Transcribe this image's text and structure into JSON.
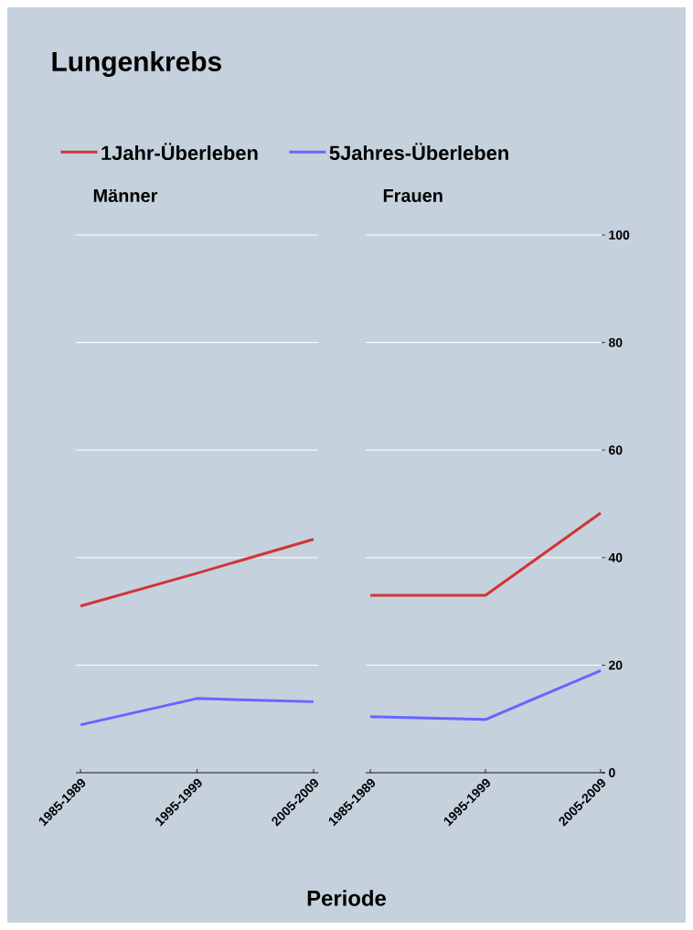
{
  "chart_data": [
    {
      "type": "line",
      "title": "Lungenkrebs",
      "subtitle": "Männer",
      "categories": [
        "1985-1989",
        "1995-1999",
        "2005-2009"
      ],
      "series": [
        {
          "name": "1Jahr-Überleben",
          "color": "#d03535",
          "values": [
            31.0,
            37.1,
            43.4
          ]
        },
        {
          "name": "5Jahres-Überleben",
          "color": "#6666ff",
          "values": [
            8.9,
            13.8,
            13.2
          ]
        }
      ],
      "ylim": [
        0,
        100
      ],
      "yticks": [
        0,
        20,
        40,
        60,
        80,
        100
      ],
      "grid": "y",
      "legend": "top",
      "tick_labels": "x"
    },
    {
      "type": "line",
      "subtitle": "Frauen",
      "xlabel": "Periode",
      "categories": [
        "1985-1989",
        "1995-1999",
        "2005-2009"
      ],
      "series": [
        {
          "color": "#d03535",
          "values": [
            33.0,
            33.0,
            48.3
          ]
        },
        {
          "color": "#6666ff",
          "values": [
            10.4,
            9.9,
            19.0
          ]
        }
      ],
      "ylim": [
        0,
        100
      ],
      "yticks": [
        0,
        20,
        40,
        60,
        80,
        100
      ],
      "grid": "y"
    }
  ]
}
